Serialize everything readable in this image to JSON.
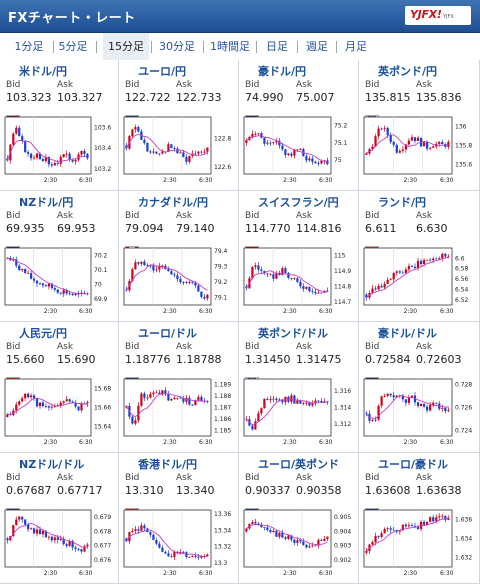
{
  "header": {
    "title": "FXチャート・レート",
    "logo_text": "YJFX!",
    "logo_sub": "YJFX"
  },
  "tabs": [
    {
      "label": "1分足"
    },
    {
      "label": "5分足"
    },
    {
      "label": "15分足",
      "active": true
    },
    {
      "label": "30分足"
    },
    {
      "label": "1時間足"
    },
    {
      "label": "日足"
    },
    {
      "label": "週足"
    },
    {
      "label": "月足"
    }
  ],
  "labels": {
    "bid": "Bid",
    "ask": "Ask"
  },
  "colors": {
    "accent": "#1d4f92",
    "up": "#d0021b",
    "down": "#1a3fd1",
    "ma": "#c23fc8"
  },
  "pairs": [
    {
      "name": "米ドル/円",
      "flag": "us",
      "bid": "103.323",
      "ask": "103.327",
      "ticks": [
        "103.6",
        "103.4",
        "103.2"
      ],
      "x_ticks": [
        "2:30",
        "6:30"
      ],
      "chart_data": {
        "type": "candlestick",
        "ylim": [
          103.15,
          103.7
        ],
        "trend": [
          103.3,
          103.6,
          103.45,
          103.3,
          103.35,
          103.3,
          103.25,
          103.28,
          103.32,
          103.3,
          103.35,
          103.33
        ]
      }
    },
    {
      "name": "ユーロ/円",
      "flag": "eu",
      "bid": "122.722",
      "ask": "122.733",
      "ticks": [
        "122.8",
        "122.6"
      ],
      "x_ticks": [
        "2:30",
        "6:30"
      ],
      "chart_data": {
        "type": "candlestick",
        "ylim": [
          122.55,
          122.95
        ],
        "trend": [
          122.75,
          122.9,
          122.8,
          122.7,
          122.68,
          122.72,
          122.75,
          122.7,
          122.65,
          122.7,
          122.72,
          122.73
        ]
      }
    },
    {
      "name": "豪ドル/円",
      "flag": "au",
      "bid": "74.990",
      "ask": "75.007",
      "ticks": [
        "75.2",
        "75.1",
        "75"
      ],
      "x_ticks": [
        "2:30",
        "6:30"
      ],
      "chart_data": {
        "type": "candlestick",
        "ylim": [
          74.92,
          75.25
        ],
        "trend": [
          75.1,
          75.18,
          75.12,
          75.08,
          75.1,
          75.05,
          75.03,
          75.06,
          75.02,
          74.98,
          75.0,
          74.99
        ]
      }
    },
    {
      "name": "英ポンド/円",
      "flag": "gb",
      "bid": "135.815",
      "ask": "135.836",
      "ticks": [
        "136",
        "135.8",
        "135.6"
      ],
      "x_ticks": [
        "2:30",
        "6:30"
      ],
      "chart_data": {
        "type": "candlestick",
        "ylim": [
          135.5,
          136.1
        ],
        "trend": [
          135.7,
          135.85,
          136.0,
          135.9,
          135.75,
          135.8,
          135.9,
          135.85,
          135.78,
          135.82,
          135.8,
          135.82
        ]
      }
    },
    {
      "name": "NZドル/円",
      "flag": "nz",
      "bid": "69.935",
      "ask": "69.953",
      "ticks": [
        "70.2",
        "70.1",
        "70",
        "69.9"
      ],
      "x_ticks": [
        "2:30",
        "6:30"
      ],
      "chart_data": {
        "type": "candlestick",
        "ylim": [
          69.86,
          70.25
        ],
        "trend": [
          70.18,
          70.15,
          70.1,
          70.05,
          70.02,
          70.0,
          69.98,
          69.96,
          69.95,
          69.93,
          69.92,
          69.94
        ]
      }
    },
    {
      "name": "カナダドル/円",
      "flag": "ca",
      "bid": "79.094",
      "ask": "79.140",
      "ticks": [
        "79.4",
        "79.3",
        "79.2",
        "79.1"
      ],
      "x_ticks": [
        "2:30",
        "6:30"
      ],
      "chart_data": {
        "type": "candlestick",
        "ylim": [
          79.05,
          79.42
        ],
        "trend": [
          79.15,
          79.3,
          79.35,
          79.3,
          79.28,
          79.3,
          79.25,
          79.22,
          79.2,
          79.18,
          79.12,
          79.1
        ]
      }
    },
    {
      "name": "スイスフラン/円",
      "flag": "ch",
      "bid": "114.770",
      "ask": "114.816",
      "ticks": [
        "115",
        "114.9",
        "114.8",
        "114.7"
      ],
      "x_ticks": [
        "2:30",
        "6:30"
      ],
      "chart_data": {
        "type": "candlestick",
        "ylim": [
          114.68,
          115.05
        ],
        "trend": [
          114.8,
          114.95,
          114.9,
          114.85,
          114.88,
          114.9,
          114.85,
          114.82,
          114.8,
          114.78,
          114.76,
          114.77
        ]
      }
    },
    {
      "name": "ランド/円",
      "flag": "za",
      "bid": "6.611",
      "ask": "6.630",
      "ticks": [
        "6.6",
        "6.58",
        "6.56",
        "6.54",
        "6.52"
      ],
      "x_ticks": [
        "2:30",
        "6:30"
      ],
      "chart_data": {
        "type": "candlestick",
        "ylim": [
          6.51,
          6.62
        ],
        "trend": [
          6.53,
          6.545,
          6.55,
          6.56,
          6.57,
          6.575,
          6.58,
          6.59,
          6.595,
          6.6,
          6.605,
          6.61
        ]
      }
    },
    {
      "name": "人民元/円",
      "flag": "cn",
      "bid": "15.660",
      "ask": "15.690",
      "ticks": [
        "15.68",
        "15.66",
        "15.64"
      ],
      "x_ticks": [
        "2:30",
        "6:30"
      ],
      "chart_data": {
        "type": "candlestick",
        "ylim": [
          15.63,
          15.69
        ],
        "trend": [
          15.65,
          15.66,
          15.67,
          15.675,
          15.665,
          15.66,
          15.658,
          15.665,
          15.668,
          15.662,
          15.66,
          15.665
        ]
      }
    },
    {
      "name": "ユーロ/ドル",
      "flag": "eu",
      "bid": "1.18776",
      "ask": "1.18788",
      "ticks": [
        "1.189",
        "1.188",
        "1.187",
        "1.186",
        "1.185"
      ],
      "x_ticks": [
        "2:30",
        "6:30"
      ],
      "chart_data": {
        "type": "candlestick",
        "ylim": [
          1.1845,
          1.1895
        ],
        "trend": [
          1.187,
          1.1855,
          1.188,
          1.1878,
          1.1885,
          1.1882,
          1.1875,
          1.1879,
          1.1877,
          1.1874,
          1.1878,
          1.1877
        ]
      }
    },
    {
      "name": "英ポンド/ドル",
      "flag": "gb",
      "bid": "1.31450",
      "ask": "1.31475",
      "ticks": [
        "1.316",
        "1.314",
        "1.312"
      ],
      "x_ticks": [
        "2:30",
        "6:30"
      ],
      "chart_data": {
        "type": "candlestick",
        "ylim": [
          1.3105,
          1.3175
        ],
        "trend": [
          1.3125,
          1.3115,
          1.314,
          1.3155,
          1.315,
          1.3148,
          1.3152,
          1.3146,
          1.3142,
          1.3145,
          1.3147,
          1.3145
        ]
      }
    },
    {
      "name": "豪ドル/ドル",
      "flag": "au",
      "bid": "0.72584",
      "ask": "0.72603",
      "ticks": [
        "0.728",
        "0.726",
        "0.724"
      ],
      "x_ticks": [
        "2:30",
        "6:30"
      ],
      "chart_data": {
        "type": "candlestick",
        "ylim": [
          0.7235,
          0.7285
        ],
        "trend": [
          0.7255,
          0.7245,
          0.7268,
          0.7272,
          0.727,
          0.7266,
          0.7268,
          0.7264,
          0.726,
          0.7262,
          0.7258,
          0.7259
        ]
      }
    },
    {
      "name": "NZドル/ドル",
      "flag": "nz",
      "bid": "0.67687",
      "ask": "0.67717",
      "ticks": [
        "0.679",
        "0.678",
        "0.677",
        "0.676"
      ],
      "x_ticks": [
        "2:30",
        "6:30"
      ],
      "chart_data": {
        "type": "candlestick",
        "ylim": [
          0.6755,
          0.6795
        ],
        "trend": [
          0.6775,
          0.6785,
          0.679,
          0.6782,
          0.678,
          0.6778,
          0.6776,
          0.6775,
          0.6772,
          0.677,
          0.6768,
          0.6769
        ]
      }
    },
    {
      "name": "香港ドル/円",
      "flag": "hk",
      "bid": "13.310",
      "ask": "13.340",
      "ticks": [
        "13.36",
        "13.34",
        "13.32",
        "13.3"
      ],
      "x_ticks": [
        "2:30",
        "6:30"
      ],
      "chart_data": {
        "type": "candlestick",
        "ylim": [
          13.295,
          13.365
        ],
        "trend": [
          13.33,
          13.34,
          13.345,
          13.335,
          13.32,
          13.315,
          13.31,
          13.312,
          13.31,
          13.308,
          13.31,
          13.311
        ]
      }
    },
    {
      "name": "ユーロ/英ポンド",
      "flag": "eu",
      "bid": "0.90337",
      "ask": "0.90358",
      "ticks": [
        "0.905",
        "0.904",
        "0.903",
        "0.902"
      ],
      "x_ticks": [
        "2:30",
        "6:30"
      ],
      "chart_data": {
        "type": "candlestick",
        "ylim": [
          0.9015,
          0.9055
        ],
        "trend": [
          0.904,
          0.9048,
          0.9045,
          0.9042,
          0.9038,
          0.9035,
          0.9036,
          0.9032,
          0.903,
          0.9028,
          0.9033,
          0.9034
        ]
      }
    },
    {
      "name": "ユーロ/豪ドル",
      "flag": "eu",
      "bid": "1.63608",
      "ask": "1.63638",
      "ticks": [
        "1.636",
        "1.634",
        "1.632"
      ],
      "x_ticks": [
        "2:30",
        "6:30"
      ],
      "chart_data": {
        "type": "candlestick",
        "ylim": [
          1.631,
          1.637
        ],
        "trend": [
          1.6325,
          1.634,
          1.6345,
          1.635,
          1.6348,
          1.6352,
          1.6355,
          1.6353,
          1.6358,
          1.636,
          1.6362,
          1.6361
        ]
      }
    }
  ]
}
